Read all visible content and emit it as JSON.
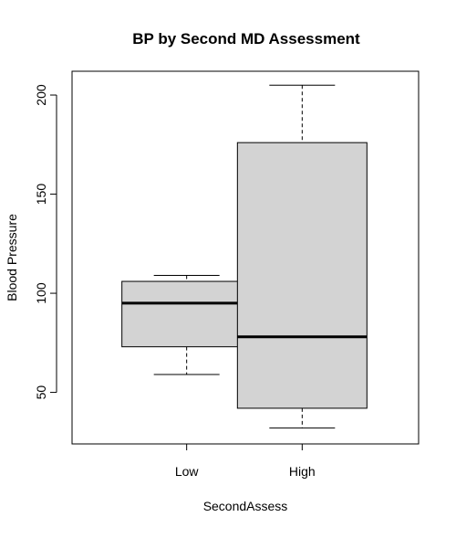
{
  "chart_data": {
    "type": "boxplot",
    "title": "BP by Second MD Assessment",
    "xlabel": "SecondAssess",
    "ylabel": "Blood Pressure",
    "categories": [
      "Low",
      "High"
    ],
    "boxes": [
      {
        "name": "Low",
        "lower_whisker": 59,
        "q1": 73,
        "median": 95,
        "q3": 106,
        "upper_whisker": 109
      },
      {
        "name": "High",
        "lower_whisker": 32,
        "q1": 42,
        "median": 78,
        "q3": 176,
        "upper_whisker": 205
      }
    ],
    "yticks": [
      50,
      100,
      150,
      200
    ],
    "ylim": [
      24,
      212
    ],
    "box_color": "#d3d3d3"
  }
}
